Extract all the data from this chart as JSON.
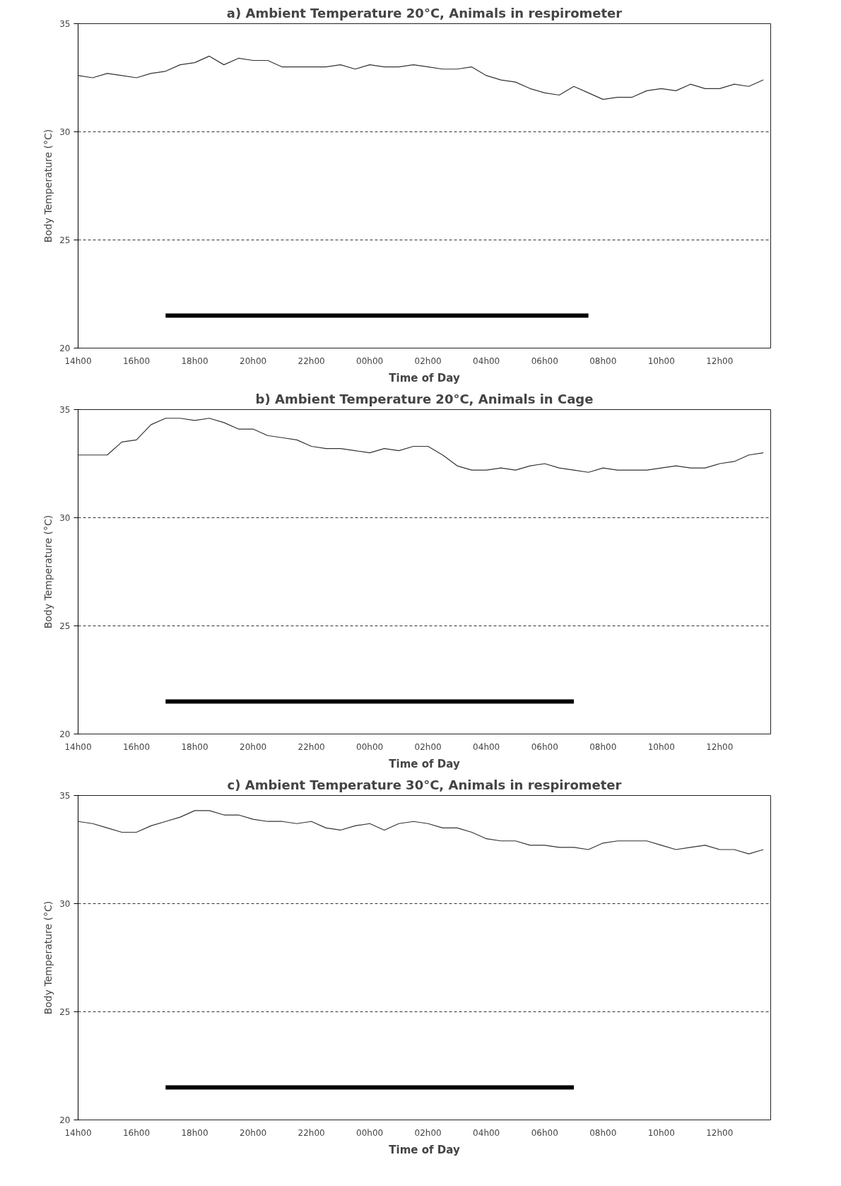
{
  "chart_data": [
    {
      "type": "line",
      "title": "a) Ambient Temperature 20°C, Animals in respirometer",
      "xlabel": "Time of Day",
      "ylabel": "Body Temperature (°C)",
      "categories": [
        "14h00",
        null,
        null,
        null,
        "16h00",
        null,
        null,
        null,
        "18h00",
        null,
        null,
        null,
        "20h00",
        null,
        null,
        null,
        "22h00",
        null,
        null,
        null,
        "00h00",
        null,
        null,
        null,
        "02h00",
        null,
        null,
        null,
        "04h00",
        null,
        null,
        null,
        "06h00",
        null,
        null,
        null,
        "08h00",
        null,
        null,
        null,
        "10h00",
        null,
        null,
        null,
        "12h00",
        null,
        null,
        null
      ],
      "ylim": [
        20,
        35
      ],
      "yticks": [
        20,
        25,
        30,
        35
      ],
      "line_style": "solid",
      "marker": "none",
      "ref_lines": [
        {
          "axis": "y",
          "value": 30,
          "color": "#333333",
          "line_style": "dashed"
        },
        {
          "axis": "y",
          "value": 25,
          "color": "#333333",
          "line_style": "dashed"
        }
      ],
      "series": [
        {
          "color": "#333333",
          "values": [
            32.6,
            32.5,
            32.7,
            32.6,
            32.5,
            32.7,
            32.8,
            33.1,
            33.2,
            33.5,
            33.1,
            33.4,
            33.3,
            33.3,
            33.0,
            33.0,
            33.0,
            33.0,
            33.1,
            32.9,
            33.1,
            33.0,
            33.0,
            33.1,
            33.0,
            32.9,
            32.9,
            33.0,
            32.6,
            32.4,
            32.3,
            32.0,
            31.8,
            31.7,
            32.1,
            31.8,
            31.5,
            31.6,
            31.6,
            31.9,
            32.0,
            31.9,
            32.2,
            32.0,
            32.0,
            32.2,
            32.1,
            32.4
          ]
        },
        {
          "color": "#000000",
          "values": [
            null,
            null,
            null,
            null,
            null,
            null,
            21.5,
            21.5,
            21.5,
            21.5,
            21.5,
            21.5,
            21.5,
            21.5,
            21.5,
            21.5,
            21.5,
            21.5,
            21.5,
            21.5,
            21.5,
            21.5,
            21.5,
            21.5,
            21.5,
            21.5,
            21.5,
            21.5,
            21.5,
            21.5,
            21.5,
            21.5,
            21.5,
            21.5,
            21.5,
            21.5,
            null,
            null,
            null,
            null,
            null,
            null,
            null,
            null,
            null,
            null,
            null,
            null
          ]
        }
      ]
    },
    {
      "type": "line",
      "title": "b) Ambient Temperature 20°C, Animals in Cage",
      "xlabel": "Time of Day",
      "ylabel": "Body Temperature (°C)",
      "categories": [
        "14h00",
        null,
        null,
        null,
        "16h00",
        null,
        null,
        null,
        "18h00",
        null,
        null,
        null,
        "20h00",
        null,
        null,
        null,
        "22h00",
        null,
        null,
        null,
        "00h00",
        null,
        null,
        null,
        "02h00",
        null,
        null,
        null,
        "04h00",
        null,
        null,
        null,
        "06h00",
        null,
        null,
        null,
        "08h00",
        null,
        null,
        null,
        "10h00",
        null,
        null,
        null,
        "12h00",
        null,
        null,
        null
      ],
      "ylim": [
        20,
        35
      ],
      "yticks": [
        20,
        25,
        30,
        35
      ],
      "line_style": "solid",
      "marker": "none",
      "ref_lines": [
        {
          "axis": "y",
          "value": 30,
          "color": "#333333",
          "line_style": "dashed"
        },
        {
          "axis": "y",
          "value": 25,
          "color": "#333333",
          "line_style": "dashed"
        }
      ],
      "series": [
        {
          "color": "#333333",
          "values": [
            32.9,
            32.9,
            32.9,
            33.5,
            33.6,
            34.3,
            34.6,
            34.6,
            34.5,
            34.6,
            34.4,
            34.1,
            34.1,
            33.8,
            33.7,
            33.6,
            33.3,
            33.2,
            33.2,
            33.1,
            33.0,
            33.2,
            33.1,
            33.3,
            33.3,
            32.9,
            32.4,
            32.2,
            32.2,
            32.3,
            32.2,
            32.4,
            32.5,
            32.3,
            32.2,
            32.1,
            32.3,
            32.2,
            32.2,
            32.2,
            32.3,
            32.4,
            32.3,
            32.3,
            32.5,
            32.6,
            32.9,
            33.0
          ]
        },
        {
          "color": "#000000",
          "values": [
            null,
            null,
            null,
            null,
            null,
            null,
            21.5,
            21.5,
            21.5,
            21.5,
            21.5,
            21.5,
            21.5,
            21.5,
            21.5,
            21.5,
            21.5,
            21.5,
            21.5,
            21.5,
            21.5,
            21.5,
            21.5,
            21.5,
            21.5,
            21.5,
            21.5,
            21.5,
            21.5,
            21.5,
            21.5,
            21.5,
            21.5,
            21.5,
            21.5,
            null,
            null,
            null,
            null,
            null,
            null,
            null,
            null,
            null,
            null,
            null,
            null,
            null
          ]
        }
      ]
    },
    {
      "type": "line",
      "title": "c) Ambient Temperature 30°C, Animals in respirometer",
      "xlabel": "Time of Day",
      "ylabel": "Body Temperature (°C)",
      "categories": [
        "14h00",
        null,
        null,
        null,
        "16h00",
        null,
        null,
        null,
        "18h00",
        null,
        null,
        null,
        "20h00",
        null,
        null,
        null,
        "22h00",
        null,
        null,
        null,
        "00h00",
        null,
        null,
        null,
        "02h00",
        null,
        null,
        null,
        "04h00",
        null,
        null,
        null,
        "06h00",
        null,
        null,
        null,
        "08h00",
        null,
        null,
        null,
        "10h00",
        null,
        null,
        null,
        "12h00",
        null,
        null,
        null
      ],
      "ylim": [
        20,
        35
      ],
      "yticks": [
        20,
        25,
        30,
        35
      ],
      "line_style": "solid",
      "marker": "none",
      "ref_lines": [
        {
          "axis": "y",
          "value": 30,
          "color": "#333333",
          "line_style": "dashed"
        },
        {
          "axis": "y",
          "value": 25,
          "color": "#333333",
          "line_style": "dashed"
        }
      ],
      "series": [
        {
          "color": "#333333",
          "values": [
            33.8,
            33.7,
            33.5,
            33.3,
            33.3,
            33.6,
            33.8,
            34.0,
            34.3,
            34.3,
            34.1,
            34.1,
            33.9,
            33.8,
            33.8,
            33.7,
            33.8,
            33.5,
            33.4,
            33.6,
            33.7,
            33.4,
            33.7,
            33.8,
            33.7,
            33.5,
            33.5,
            33.3,
            33.0,
            32.9,
            32.9,
            32.7,
            32.7,
            32.6,
            32.6,
            32.5,
            32.8,
            32.9,
            32.9,
            32.9,
            32.7,
            32.5,
            32.6,
            32.7,
            32.5,
            32.5,
            32.3,
            32.5
          ]
        },
        {
          "color": "#000000",
          "values": [
            null,
            null,
            null,
            null,
            null,
            null,
            21.5,
            21.5,
            21.5,
            21.5,
            21.5,
            21.5,
            21.5,
            21.5,
            21.5,
            21.5,
            21.5,
            21.5,
            21.5,
            21.5,
            21.5,
            21.5,
            21.5,
            21.5,
            21.5,
            21.5,
            21.5,
            21.5,
            21.5,
            21.5,
            21.5,
            21.5,
            21.5,
            21.5,
            21.5,
            null,
            null,
            null,
            null,
            null,
            null,
            null,
            null,
            null,
            null,
            null,
            null,
            null
          ]
        }
      ]
    }
  ]
}
